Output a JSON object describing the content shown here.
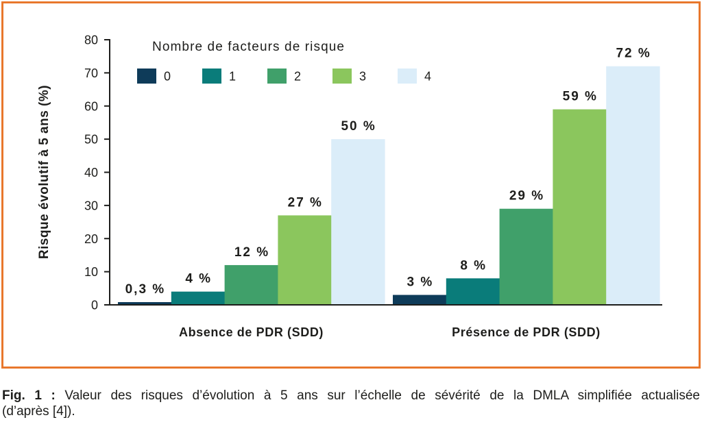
{
  "figure": {
    "border_color": "#e8772c"
  },
  "chart_data": {
    "type": "bar",
    "categories": [
      "Absence de PDR (SDD)",
      "Présence de PDR (SDD)"
    ],
    "ylabel": "Risque évolutif à 5 ans (%)",
    "ylim": [
      0,
      80
    ],
    "yticks": [
      0,
      10,
      20,
      30,
      40,
      50,
      60,
      70,
      80
    ],
    "grid": false,
    "legend": {
      "title": "Nombre de facteurs de risque",
      "placement": "top-left",
      "orientation": "horizontal"
    },
    "series": [
      {
        "name": "0",
        "color": "#0e3b59",
        "values": [
          0.3,
          3
        ],
        "labels": [
          "0,3 %",
          "3 %"
        ]
      },
      {
        "name": "1",
        "color": "#0a7c7a",
        "values": [
          4,
          8
        ],
        "labels": [
          "4 %",
          "8 %"
        ]
      },
      {
        "name": "2",
        "color": "#40a06a",
        "values": [
          12,
          29
        ],
        "labels": [
          "12 %",
          "29 %"
        ]
      },
      {
        "name": "3",
        "color": "#8bc65d",
        "values": [
          27,
          59
        ],
        "labels": [
          "27 %",
          "59 %"
        ]
      },
      {
        "name": "4",
        "color": "#dbedf9",
        "values": [
          50,
          72
        ],
        "labels": [
          "50 %",
          "72 %"
        ]
      }
    ]
  },
  "caption": {
    "label": "Fig. 1 :",
    "line1": "Valeur des risques d’évolution à 5 ans sur l’échelle de sévérité de la DMLA simplifiée actualisée",
    "line2": "(d’après [4])."
  }
}
